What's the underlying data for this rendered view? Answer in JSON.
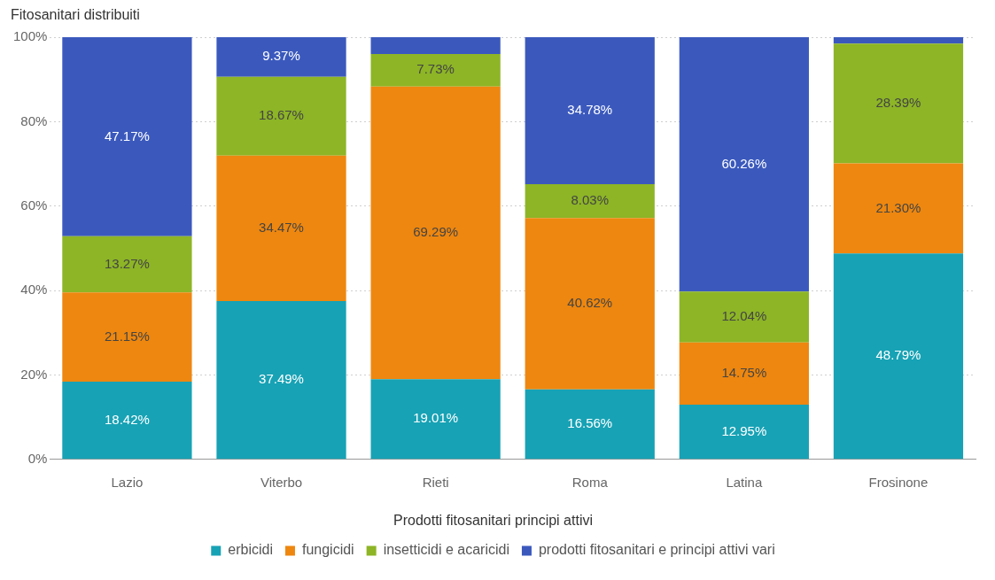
{
  "chart_data": {
    "type": "bar",
    "stacked": true,
    "ylabel": "Fitosanitari distribuiti",
    "legend_title": "Prodotti fitosanitari principi attivi",
    "legend": "bottom",
    "grid": "y",
    "categories": [
      "Lazio",
      "Viterbo",
      "Rieti",
      "Roma",
      "Latina",
      "Frosinone"
    ],
    "ylim": [
      0,
      100
    ],
    "yticks": [
      {
        "value": 0,
        "label": "0%"
      },
      {
        "value": 20,
        "label": "20%"
      },
      {
        "value": 40,
        "label": "40%"
      },
      {
        "value": 60,
        "label": "60%"
      },
      {
        "value": 80,
        "label": "80%"
      },
      {
        "value": 100,
        "label": "100%"
      }
    ],
    "series": [
      {
        "name": "erbicidi",
        "color": "#17a2b5",
        "values": [
          18.42,
          37.49,
          19.01,
          16.56,
          12.95,
          48.79
        ],
        "value_labels": [
          "18.42%",
          "37.49%",
          "19.01%",
          "16.56%",
          "12.95%",
          "48.79%"
        ]
      },
      {
        "name": "fungicidi",
        "color": "#ee870f",
        "values": [
          21.15,
          34.47,
          69.29,
          40.62,
          14.75,
          21.3
        ],
        "value_labels": [
          "21.15%",
          "34.47%",
          "69.29%",
          "40.62%",
          "14.75%",
          "21.30%"
        ]
      },
      {
        "name": "insetticidi e acaricidi",
        "color": "#8db526",
        "values": [
          13.27,
          18.67,
          7.73,
          8.03,
          12.04,
          28.39
        ],
        "value_labels": [
          "13.27%",
          "18.67%",
          "7.73%",
          "8.03%",
          "12.04%",
          "28.39%"
        ]
      },
      {
        "name": "prodotti fitosanitari e principi attivi vari",
        "color": "#3b59bd",
        "values": [
          47.17,
          9.37,
          3.97,
          34.78,
          60.26,
          1.52
        ],
        "value_labels": [
          "47.17%",
          "9.37%",
          null,
          "34.78%",
          "60.26%",
          null
        ]
      }
    ]
  }
}
